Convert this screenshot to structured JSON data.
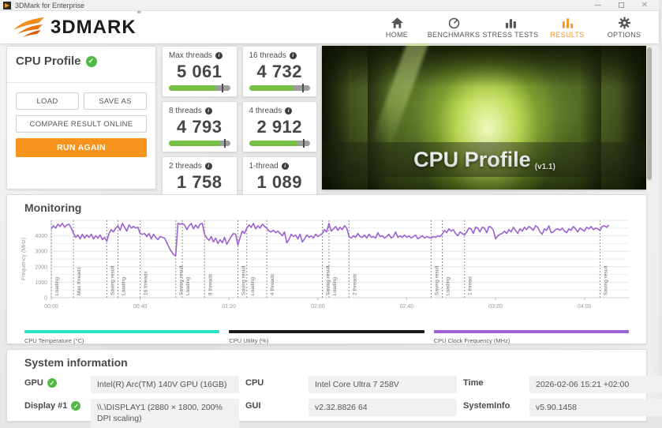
{
  "window": {
    "title": "3DMark for Enterprise"
  },
  "header": {
    "logo_text": "3DMARK",
    "logo_reg": "®",
    "accent_color": "#f7941e",
    "nav": [
      {
        "id": "home",
        "label": "HOME",
        "icon": "home-icon",
        "active": false
      },
      {
        "id": "benchmarks",
        "label": "BENCHMARKS",
        "icon": "gauge-icon",
        "active": false
      },
      {
        "id": "stress-tests",
        "label": "STRESS TESTS",
        "icon": "bar-chart-icon",
        "active": false
      },
      {
        "id": "results",
        "label": "RESULTS",
        "icon": "results-bars-icon",
        "active": true
      },
      {
        "id": "options",
        "label": "OPTIONS",
        "icon": "gear-icon",
        "active": false
      }
    ]
  },
  "test_panel": {
    "title": "CPU Profile",
    "status_icon": "green-check-icon",
    "load_label": "LOAD",
    "save_as_label": "SAVE AS",
    "compare_label": "COMPARE RESULT ONLINE",
    "run_again_label": "RUN AGAIN"
  },
  "scores": [
    {
      "label": "Max threads",
      "value": "5 061",
      "fill": 0.77,
      "tick": 0.88
    },
    {
      "label": "16 threads",
      "value": "4 732",
      "fill": 0.73,
      "tick": 0.88
    },
    {
      "label": "8 threads",
      "value": "4 793",
      "fill": 0.84,
      "tick": 0.92
    },
    {
      "label": "4 threads",
      "value": "2 912",
      "fill": 0.79,
      "tick": 0.9
    },
    {
      "label": "2 threads",
      "value": "1 758",
      "fill": 0.77,
      "tick": 0.9
    },
    {
      "label": "1-thread",
      "value": "1 089",
      "fill": 0.93,
      "tick": 0.96
    }
  ],
  "score_colors": {
    "bar_fill": "#76c043",
    "bar_track": "#9d9d9d",
    "bar_tick": "#4b4b4b"
  },
  "hero": {
    "title": "CPU Profile",
    "version": "(v1.1)"
  },
  "monitoring": {
    "title": "Monitoring",
    "legend": [
      {
        "label": "CPU Temperature (°C)",
        "color": "#2be0c5"
      },
      {
        "label": "CPU Utility (%)",
        "color": "#1b1b1b"
      },
      {
        "label": "CPU Clock Frequency (MHz)",
        "color": "#9a63d1"
      }
    ]
  },
  "chart_data": {
    "type": "line",
    "title": "Monitoring",
    "xlabel": "",
    "ylabel": "Frequency (MHz)",
    "ylim": [
      0,
      5000
    ],
    "xlim_seconds": [
      0,
      260
    ],
    "grid": true,
    "grid_step": 500,
    "y_ticks": [
      0,
      1000,
      2000,
      3000,
      4000
    ],
    "x_ticks": [
      {
        "t": 0,
        "label": "00:00"
      },
      {
        "t": 40,
        "label": "00:40"
      },
      {
        "t": 80,
        "label": "01:20"
      },
      {
        "t": 120,
        "label": "02:00"
      },
      {
        "t": 160,
        "label": "02:40"
      },
      {
        "t": 200,
        "label": "03:20"
      },
      {
        "t": 240,
        "label": "04:00"
      }
    ],
    "events": [
      {
        "t": 0,
        "label": "Loading"
      },
      {
        "t": 10,
        "label": "Max threads"
      },
      {
        "t": 25,
        "label": "Saving result"
      },
      {
        "t": 30,
        "label": "Loading"
      },
      {
        "t": 40,
        "label": "16 threads"
      },
      {
        "t": 56,
        "label": "Saving result"
      },
      {
        "t": 59,
        "label": "Loading"
      },
      {
        "t": 69,
        "label": "8 threads"
      },
      {
        "t": 84,
        "label": "Saving result"
      },
      {
        "t": 88,
        "label": "Loading"
      },
      {
        "t": 97,
        "label": "4 threads"
      },
      {
        "t": 122,
        "label": "Saving result"
      },
      {
        "t": 125,
        "label": "Loading"
      },
      {
        "t": 134,
        "label": "2 threads"
      },
      {
        "t": 171,
        "label": "Saving result"
      },
      {
        "t": 176,
        "label": "Loading"
      },
      {
        "t": 186,
        "label": "1 thread"
      },
      {
        "t": 247,
        "label": "Saving result"
      }
    ],
    "series": [
      {
        "name": "CPU Clock Frequency (MHz)",
        "color": "#9a63d1",
        "points": [
          [
            0,
            4450
          ],
          [
            1,
            4650
          ],
          [
            2,
            4500
          ],
          [
            3,
            4750
          ],
          [
            4,
            4600
          ],
          [
            5,
            4800
          ],
          [
            6,
            4550
          ],
          [
            7,
            4700
          ],
          [
            8,
            4750
          ],
          [
            9,
            4500
          ],
          [
            10,
            4150
          ],
          [
            11,
            3900
          ],
          [
            12,
            4050
          ],
          [
            13,
            3800
          ],
          [
            14,
            4100
          ],
          [
            15,
            3850
          ],
          [
            16,
            4050
          ],
          [
            17,
            3900
          ],
          [
            18,
            4100
          ],
          [
            19,
            3800
          ],
          [
            20,
            4000
          ],
          [
            21,
            3850
          ],
          [
            22,
            4050
          ],
          [
            23,
            3750
          ],
          [
            24,
            3900
          ],
          [
            25,
            3650
          ],
          [
            26,
            4150
          ],
          [
            27,
            4400
          ],
          [
            28,
            4250
          ],
          [
            29,
            4500
          ],
          [
            30,
            4650
          ],
          [
            31,
            4350
          ],
          [
            32,
            4800
          ],
          [
            33,
            4550
          ],
          [
            34,
            4300
          ],
          [
            35,
            4700
          ],
          [
            36,
            4500
          ],
          [
            37,
            4600
          ],
          [
            38,
            4500
          ],
          [
            39,
            4550
          ],
          [
            40,
            4150
          ],
          [
            41,
            4100
          ],
          [
            42,
            4150
          ],
          [
            43,
            3950
          ],
          [
            44,
            4150
          ],
          [
            45,
            3800
          ],
          [
            46,
            4100
          ],
          [
            47,
            3900
          ],
          [
            48,
            3750
          ],
          [
            49,
            3950
          ],
          [
            50,
            3900
          ],
          [
            51,
            3850
          ],
          [
            52,
            3550
          ],
          [
            53,
            3250
          ],
          [
            54,
            3000
          ],
          [
            55,
            2800
          ],
          [
            56,
            2700
          ],
          [
            57,
            4800
          ],
          [
            58,
            4750
          ],
          [
            59,
            4800
          ],
          [
            60,
            4700
          ],
          [
            61,
            4400
          ],
          [
            62,
            4650
          ],
          [
            63,
            4800
          ],
          [
            64,
            4450
          ],
          [
            65,
            4700
          ],
          [
            66,
            4500
          ],
          [
            67,
            4750
          ],
          [
            68,
            4800
          ],
          [
            69,
            4100
          ],
          [
            70,
            3850
          ],
          [
            71,
            3700
          ],
          [
            72,
            3950
          ],
          [
            73,
            3600
          ],
          [
            74,
            3850
          ],
          [
            75,
            3500
          ],
          [
            76,
            3750
          ],
          [
            77,
            3550
          ],
          [
            78,
            3900
          ],
          [
            79,
            3450
          ],
          [
            80,
            3700
          ],
          [
            81,
            3950
          ],
          [
            82,
            4150
          ],
          [
            83,
            4100
          ],
          [
            84,
            3400
          ],
          [
            85,
            3900
          ],
          [
            86,
            4300
          ],
          [
            87,
            4150
          ],
          [
            88,
            4500
          ],
          [
            89,
            4700
          ],
          [
            90,
            4550
          ],
          [
            91,
            4800
          ],
          [
            92,
            4450
          ],
          [
            93,
            4650
          ],
          [
            94,
            4500
          ],
          [
            95,
            4750
          ],
          [
            96,
            4600
          ],
          [
            97,
            4500
          ],
          [
            98,
            4300
          ],
          [
            99,
            4250
          ],
          [
            100,
            4350
          ],
          [
            101,
            4200
          ],
          [
            102,
            4300
          ],
          [
            103,
            4150
          ],
          [
            104,
            4000
          ],
          [
            105,
            4250
          ],
          [
            106,
            3550
          ],
          [
            107,
            3750
          ],
          [
            108,
            4100
          ],
          [
            109,
            3950
          ],
          [
            110,
            4050
          ],
          [
            111,
            3800
          ],
          [
            112,
            4100
          ],
          [
            113,
            3600
          ],
          [
            114,
            3800
          ],
          [
            115,
            4050
          ],
          [
            116,
            3900
          ],
          [
            117,
            4000
          ],
          [
            118,
            3850
          ],
          [
            119,
            4100
          ],
          [
            120,
            3950
          ],
          [
            121,
            4050
          ],
          [
            122,
            4150
          ],
          [
            123,
            4400
          ],
          [
            124,
            4250
          ],
          [
            125,
            4800
          ],
          [
            126,
            4300
          ],
          [
            127,
            4450
          ],
          [
            128,
            4600
          ],
          [
            129,
            4350
          ],
          [
            130,
            4550
          ],
          [
            131,
            4400
          ],
          [
            132,
            4650
          ],
          [
            133,
            4500
          ],
          [
            134,
            3950
          ],
          [
            135,
            3850
          ],
          [
            136,
            4000
          ],
          [
            137,
            3900
          ],
          [
            138,
            4150
          ],
          [
            139,
            3950
          ],
          [
            140,
            3900
          ],
          [
            141,
            4050
          ],
          [
            142,
            3850
          ],
          [
            143,
            4100
          ],
          [
            144,
            3900
          ],
          [
            145,
            3950
          ],
          [
            146,
            3850
          ],
          [
            147,
            4200
          ],
          [
            148,
            3950
          ],
          [
            149,
            4000
          ],
          [
            150,
            3850
          ],
          [
            151,
            3950
          ],
          [
            152,
            4100
          ],
          [
            153,
            3850
          ],
          [
            154,
            3950
          ],
          [
            155,
            4250
          ],
          [
            156,
            3900
          ],
          [
            157,
            4000
          ],
          [
            158,
            3900
          ],
          [
            159,
            4050
          ],
          [
            160,
            3900
          ],
          [
            161,
            4000
          ],
          [
            162,
            3850
          ],
          [
            163,
            3950
          ],
          [
            164,
            4050
          ],
          [
            165,
            3800
          ],
          [
            166,
            3900
          ],
          [
            167,
            4000
          ],
          [
            168,
            3850
          ],
          [
            169,
            3950
          ],
          [
            170,
            3900
          ],
          [
            171,
            3850
          ],
          [
            172,
            3950
          ],
          [
            173,
            3900
          ],
          [
            174,
            4000
          ],
          [
            175,
            3950
          ],
          [
            176,
            4100
          ],
          [
            177,
            4350
          ],
          [
            178,
            4200
          ],
          [
            179,
            4450
          ],
          [
            180,
            4300
          ],
          [
            181,
            4400
          ],
          [
            182,
            4150
          ],
          [
            183,
            4000
          ],
          [
            184,
            4250
          ],
          [
            185,
            4150
          ],
          [
            186,
            4050
          ],
          [
            187,
            4250
          ],
          [
            188,
            4500
          ],
          [
            189,
            4450
          ],
          [
            190,
            4150
          ],
          [
            191,
            4550
          ],
          [
            192,
            4500
          ],
          [
            193,
            4250
          ],
          [
            194,
            4550
          ],
          [
            195,
            4500
          ],
          [
            196,
            4200
          ],
          [
            197,
            4600
          ],
          [
            198,
            4550
          ],
          [
            199,
            4350
          ],
          [
            200,
            3800
          ],
          [
            201,
            4000
          ],
          [
            202,
            4100
          ],
          [
            203,
            4150
          ],
          [
            204,
            4300
          ],
          [
            205,
            4150
          ],
          [
            206,
            4400
          ],
          [
            207,
            4250
          ],
          [
            208,
            4550
          ],
          [
            209,
            4350
          ],
          [
            210,
            4150
          ],
          [
            211,
            4450
          ],
          [
            212,
            4300
          ],
          [
            213,
            4550
          ],
          [
            214,
            4400
          ],
          [
            215,
            4600
          ],
          [
            216,
            4500
          ],
          [
            217,
            4350
          ],
          [
            218,
            4650
          ],
          [
            219,
            4550
          ],
          [
            220,
            4250
          ],
          [
            221,
            4100
          ],
          [
            222,
            4450
          ],
          [
            223,
            4350
          ],
          [
            224,
            4650
          ],
          [
            225,
            4200
          ],
          [
            226,
            4250
          ],
          [
            227,
            4400
          ],
          [
            228,
            4450
          ],
          [
            229,
            4350
          ],
          [
            230,
            4500
          ],
          [
            231,
            4300
          ],
          [
            232,
            4200
          ],
          [
            233,
            4450
          ],
          [
            234,
            4350
          ],
          [
            235,
            4600
          ],
          [
            236,
            4450
          ],
          [
            237,
            4250
          ],
          [
            238,
            4500
          ],
          [
            239,
            4400
          ],
          [
            240,
            4300
          ],
          [
            241,
            4550
          ],
          [
            242,
            4450
          ],
          [
            243,
            4600
          ],
          [
            244,
            4400
          ],
          [
            245,
            4500
          ],
          [
            246,
            4450
          ],
          [
            247,
            4350
          ],
          [
            248,
            4600
          ],
          [
            249,
            4650
          ],
          [
            250,
            4550
          ],
          [
            251,
            4700
          ]
        ]
      }
    ]
  },
  "system_info": {
    "title": "System information",
    "rows": [
      {
        "label": "GPU",
        "check": true,
        "value": "Intel(R) Arc(TM) 140V GPU (16GB)"
      },
      {
        "label": "CPU",
        "check": false,
        "value": "Intel Core Ultra 7 258V"
      },
      {
        "label": "Time",
        "check": false,
        "value": "2026-02-06 15:21 +02:00"
      },
      {
        "label": "Display #1",
        "check": true,
        "value": "\\\\.\\DISPLAY1 (2880 × 1800, 200% DPI scaling)"
      },
      {
        "label": "GUI",
        "check": false,
        "value": "v2.32.8826 64"
      },
      {
        "label": "SystemInfo",
        "check": false,
        "value": "v5.90.1458"
      }
    ]
  }
}
